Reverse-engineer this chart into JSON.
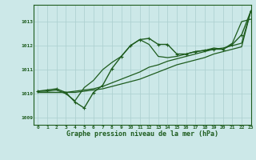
{
  "xlabel": "Graphe pression niveau de la mer (hPa)",
  "background_color": "#cce8e8",
  "grid_color": "#aacece",
  "line_color": "#1e5c1e",
  "xlim": [
    -0.5,
    23
  ],
  "ylim": [
    1008.7,
    1013.7
  ],
  "yticks": [
    1009,
    1010,
    1011,
    1012,
    1013
  ],
  "xticks": [
    0,
    1,
    2,
    3,
    4,
    5,
    6,
    7,
    8,
    9,
    10,
    11,
    12,
    13,
    14,
    15,
    16,
    17,
    18,
    19,
    20,
    21,
    22,
    23
  ],
  "series": [
    {
      "y": [
        1010.1,
        1010.15,
        1010.2,
        1010.05,
        1009.65,
        1009.4,
        1010.05,
        1010.35,
        1011.05,
        1011.55,
        1012.0,
        1012.25,
        1012.3,
        1012.05,
        1012.05,
        1011.65,
        1011.65,
        1011.75,
        1011.8,
        1011.85,
        1011.85,
        1012.05,
        1012.45,
        1013.45
      ],
      "marker": true,
      "linewidth": 1.0
    },
    {
      "y": [
        1010.1,
        1010.1,
        1010.15,
        1010.0,
        1009.7,
        1010.25,
        1010.55,
        1011.0,
        1011.3,
        1011.55,
        1012.0,
        1012.25,
        1012.05,
        1011.55,
        1011.5,
        1011.55,
        1011.65,
        1011.75,
        1011.8,
        1011.9,
        1011.85,
        1012.1,
        1013.0,
        1013.1
      ],
      "marker": false,
      "linewidth": 0.9
    },
    {
      "y": [
        1010.05,
        1010.05,
        1010.05,
        1010.05,
        1010.1,
        1010.15,
        1010.2,
        1010.3,
        1010.45,
        1010.6,
        1010.75,
        1010.9,
        1011.1,
        1011.2,
        1011.35,
        1011.45,
        1011.55,
        1011.65,
        1011.75,
        1011.85,
        1011.9,
        1012.0,
        1012.1,
        1013.45
      ],
      "marker": false,
      "linewidth": 0.9
    },
    {
      "y": [
        1010.05,
        1010.05,
        1010.05,
        1010.05,
        1010.05,
        1010.1,
        1010.15,
        1010.2,
        1010.3,
        1010.4,
        1010.5,
        1010.6,
        1010.75,
        1010.9,
        1011.05,
        1011.2,
        1011.3,
        1011.4,
        1011.5,
        1011.65,
        1011.75,
        1011.85,
        1011.95,
        1013.45
      ],
      "marker": false,
      "linewidth": 0.9
    }
  ]
}
